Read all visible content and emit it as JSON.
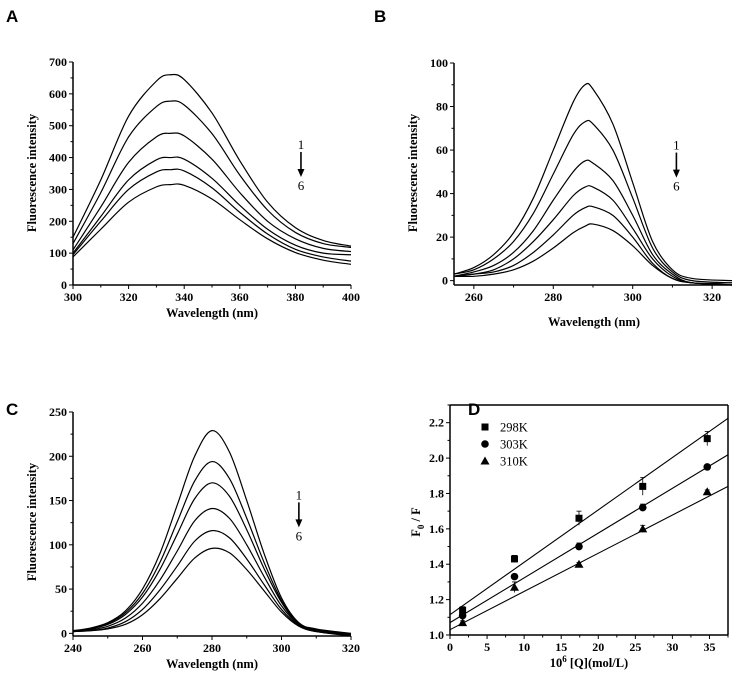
{
  "chart_data": [
    {
      "panel": "A",
      "type": "line",
      "xlabel": "Wavelength (nm)",
      "ylabel": "Fluorescence intensity",
      "xlim": [
        300,
        400
      ],
      "ylim": [
        0,
        700
      ],
      "xticks": [
        300,
        320,
        340,
        360,
        380,
        400
      ],
      "yticks": [
        0,
        100,
        200,
        300,
        400,
        500,
        600,
        700
      ],
      "annotation": {
        "from": "1",
        "to": "6",
        "x": 382
      },
      "x": [
        300,
        310,
        320,
        330,
        335,
        340,
        350,
        360,
        370,
        380,
        390,
        400
      ],
      "series": [
        {
          "name": "1",
          "values": [
            150,
            330,
            530,
            640,
            660,
            645,
            540,
            390,
            260,
            180,
            140,
            122
          ]
        },
        {
          "name": "2",
          "values": [
            130,
            290,
            465,
            560,
            577,
            565,
            475,
            345,
            235,
            165,
            130,
            118
          ]
        },
        {
          "name": "3",
          "values": [
            110,
            245,
            385,
            465,
            476,
            468,
            395,
            290,
            200,
            145,
            115,
            105
          ]
        },
        {
          "name": "4",
          "values": [
            100,
            215,
            330,
            393,
            400,
            395,
            335,
            250,
            175,
            125,
            100,
            95
          ]
        },
        {
          "name": "5",
          "values": [
            95,
            200,
            300,
            355,
            362,
            358,
            305,
            228,
            160,
            112,
            88,
            75
          ]
        },
        {
          "name": "6",
          "values": [
            88,
            175,
            260,
            308,
            315,
            313,
            270,
            205,
            145,
            102,
            78,
            65
          ]
        }
      ]
    },
    {
      "panel": "B",
      "type": "line",
      "xlabel": "Wavelength (nm)",
      "ylabel": "Fluorescence intensity",
      "xlim": [
        255,
        325
      ],
      "ylim": [
        -2,
        100
      ],
      "xticks": [
        260,
        280,
        300,
        320
      ],
      "yticks": [
        0,
        20,
        40,
        60,
        80,
        100
      ],
      "annotation": {
        "from": "1",
        "to": "6",
        "x": 311
      },
      "x": [
        255,
        260,
        265,
        270,
        275,
        280,
        285,
        288,
        290,
        295,
        300,
        305,
        310,
        315,
        325
      ],
      "series": [
        {
          "name": "1",
          "values": [
            3,
            6,
            12,
            22,
            38,
            60,
            82,
            90,
            88,
            72,
            45,
            18,
            5,
            1,
            0
          ]
        },
        {
          "name": "2",
          "values": [
            3,
            5,
            10,
            18,
            31,
            49,
            67,
            73,
            72,
            60,
            38,
            15,
            4,
            0,
            -1
          ]
        },
        {
          "name": "3",
          "values": [
            2,
            4,
            7,
            13,
            23,
            37,
            50,
            55,
            54,
            46,
            30,
            12,
            3,
            -1,
            -1
          ]
        },
        {
          "name": "4",
          "values": [
            2,
            3,
            5,
            10,
            18,
            28,
            39,
            43,
            43,
            37,
            24,
            10,
            2,
            -1,
            -2
          ]
        },
        {
          "name": "5",
          "values": [
            2,
            3,
            4,
            7,
            13,
            21,
            30,
            33.5,
            34,
            30,
            20,
            8,
            1,
            -1,
            -2
          ]
        },
        {
          "name": "6",
          "values": [
            2,
            2,
            3,
            5,
            9,
            15,
            22,
            25,
            26,
            23,
            16,
            7,
            1,
            -1,
            -2
          ]
        }
      ]
    },
    {
      "panel": "C",
      "type": "line",
      "xlabel": "Wavelength (nm)",
      "ylabel": "Fluorescence intensity",
      "xlim": [
        240,
        320
      ],
      "ylim": [
        -3,
        250
      ],
      "xticks": [
        240,
        260,
        280,
        300,
        320
      ],
      "yticks": [
        0,
        50,
        100,
        150,
        200,
        250
      ],
      "annotation": {
        "from": "1",
        "to": "6",
        "x": 305
      },
      "x": [
        240,
        245,
        250,
        255,
        260,
        265,
        270,
        275,
        280,
        285,
        290,
        295,
        300,
        305,
        310,
        320
      ],
      "series": [
        {
          "name": "1",
          "values": [
            3,
            6,
            12,
            25,
            50,
            90,
            145,
            200,
            229,
            205,
            150,
            90,
            40,
            12,
            5,
            0
          ]
        },
        {
          "name": "2",
          "values": [
            3,
            5,
            11,
            23,
            45,
            80,
            126,
            172,
            194,
            175,
            130,
            80,
            37,
            11,
            4,
            -1
          ]
        },
        {
          "name": "3",
          "values": [
            3,
            5,
            10,
            21,
            41,
            72,
            112,
            152,
            170,
            155,
            117,
            73,
            35,
            10,
            4,
            -1
          ]
        },
        {
          "name": "4",
          "values": [
            2,
            4,
            8,
            17,
            34,
            60,
            93,
            127,
            141,
            130,
            100,
            64,
            31,
            10,
            3,
            -2
          ]
        },
        {
          "name": "5",
          "values": [
            2,
            3,
            6,
            13,
            27,
            49,
            76,
            104,
            116,
            108,
            84,
            55,
            27,
            9,
            2,
            -2
          ]
        },
        {
          "name": "6",
          "values": [
            2,
            3,
            5,
            10,
            21,
            39,
            62,
            85,
            96,
            91,
            72,
            48,
            24,
            8,
            2,
            -3
          ]
        }
      ]
    },
    {
      "panel": "D",
      "type": "scatter",
      "xlabel_base": "10",
      "xlabel_sup": "6",
      "xlabel_rest": " [Q](mol/L)",
      "ylabel_main": "F",
      "ylabel_sub": "0",
      "ylabel_rest": " / F",
      "xlim": [
        0,
        37.5
      ],
      "ylim": [
        1.0,
        2.3
      ],
      "xticks": [
        0,
        5,
        10,
        15,
        20,
        25,
        30,
        35
      ],
      "yticks": [
        "1.0",
        "1.2",
        "1.4",
        "1.6",
        "1.8",
        "2.0",
        "2.2"
      ],
      "legend_position": "top-left",
      "x": [
        1.7,
        8.7,
        17.4,
        26.0,
        34.7
      ],
      "series": [
        {
          "name": "298K",
          "marker": "square",
          "values": [
            1.14,
            1.43,
            1.66,
            1.84,
            2.11
          ],
          "errors": [
            0.02,
            0.02,
            0.04,
            0.05,
            0.04
          ],
          "fit": {
            "intercept": 1.115,
            "slope": 0.0296
          }
        },
        {
          "name": "303K",
          "marker": "circle",
          "values": [
            1.11,
            1.33,
            1.5,
            1.72,
            1.95
          ],
          "errors": [
            0.01,
            0.01,
            0.02,
            0.02,
            0.01
          ],
          "fit": {
            "intercept": 1.07,
            "slope": 0.0253
          }
        },
        {
          "name": "310K",
          "marker": "triangle",
          "values": [
            1.07,
            1.27,
            1.4,
            1.6,
            1.81
          ],
          "errors": [
            0.01,
            0.03,
            0.01,
            0.02,
            0.01
          ],
          "fit": {
            "intercept": 1.03,
            "slope": 0.0216
          }
        }
      ]
    }
  ]
}
